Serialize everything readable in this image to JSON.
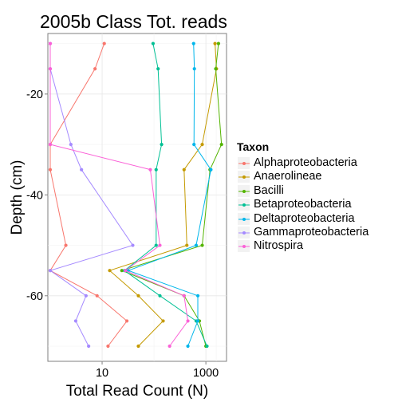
{
  "title": "2005b Class Tot. reads",
  "chart_data": {
    "type": "line",
    "title": "2005b Class Tot. reads",
    "xlabel": "Total Read Count (N)",
    "ylabel": "Depth (cm)",
    "x_scale": "log10",
    "xlim": [
      0.9,
      2500
    ],
    "ylim": [
      -73,
      -8
    ],
    "x_ticks": [
      10,
      1000
    ],
    "x_tick_labels": [
      "10",
      "1000"
    ],
    "y_ticks": [
      -20,
      -40,
      -60
    ],
    "y_tick_labels": [
      "-20",
      "-40",
      "-60"
    ],
    "grid": true,
    "legend_title": "Taxon",
    "legend_position": "right",
    "series": [
      {
        "name": "Alphaproteobacteria",
        "color": "#F8766D",
        "points": [
          [
            11,
            -10
          ],
          [
            7.3,
            -15
          ],
          [
            1,
            -30
          ],
          [
            1,
            -35
          ],
          [
            2,
            -50
          ],
          [
            1,
            -55
          ],
          [
            8,
            -60
          ],
          [
            30,
            -65
          ],
          [
            13,
            -70
          ]
        ]
      },
      {
        "name": "Anaerolineae",
        "color": "#C49A00",
        "points": [
          [
            1500,
            -10
          ],
          [
            1600,
            -15
          ],
          [
            850,
            -30
          ],
          [
            380,
            -35
          ],
          [
            430,
            -50
          ],
          [
            14,
            -55
          ],
          [
            50,
            -60
          ],
          [
            150,
            -65
          ],
          [
            50,
            -70
          ]
        ]
      },
      {
        "name": "Bacilli",
        "color": "#53B400",
        "points": [
          [
            1750,
            -10
          ],
          [
            1550,
            -15
          ],
          [
            2000,
            -30
          ],
          [
            1200,
            -35
          ],
          [
            850,
            -50
          ],
          [
            24,
            -55
          ],
          [
            380,
            -60
          ],
          [
            750,
            -65
          ],
          [
            1000,
            -70
          ]
        ]
      },
      {
        "name": "Betaproteobacteria",
        "color": "#00C094",
        "points": [
          [
            96,
            -10
          ],
          [
            120,
            -15
          ],
          [
            140,
            -30
          ],
          [
            110,
            -35
          ],
          [
            110,
            -50
          ],
          [
            27,
            -55
          ],
          [
            130,
            -60
          ],
          [
            650,
            -65
          ],
          [
            1050,
            -70
          ]
        ]
      },
      {
        "name": "Deltaproteobacteria",
        "color": "#00B6EB",
        "points": [
          [
            580,
            -10
          ],
          [
            600,
            -15
          ],
          [
            590,
            -30
          ],
          [
            1250,
            -35
          ],
          [
            650,
            -50
          ],
          [
            32,
            -55
          ],
          [
            700,
            -60
          ],
          [
            700,
            -65
          ],
          [
            450,
            -70
          ]
        ]
      },
      {
        "name": "Gammaproteobacteria",
        "color": "#A58AFF",
        "points": [
          [
            1,
            -10
          ],
          [
            1,
            -15
          ],
          [
            2.5,
            -30
          ],
          [
            4,
            -35
          ],
          [
            39,
            -50
          ],
          [
            1,
            -55
          ],
          [
            4.9,
            -60
          ],
          [
            3.1,
            -65
          ],
          [
            5.5,
            -70
          ]
        ]
      },
      {
        "name": "Nitrospira",
        "color": "#FB61D7",
        "points": [
          [
            1,
            -10
          ],
          [
            1,
            -15
          ],
          [
            1,
            -30
          ],
          [
            85,
            -35
          ],
          [
            130,
            -50
          ],
          [
            28,
            -55
          ],
          [
            380,
            -60
          ],
          [
            450,
            -65
          ],
          [
            200,
            -70
          ]
        ]
      }
    ]
  }
}
